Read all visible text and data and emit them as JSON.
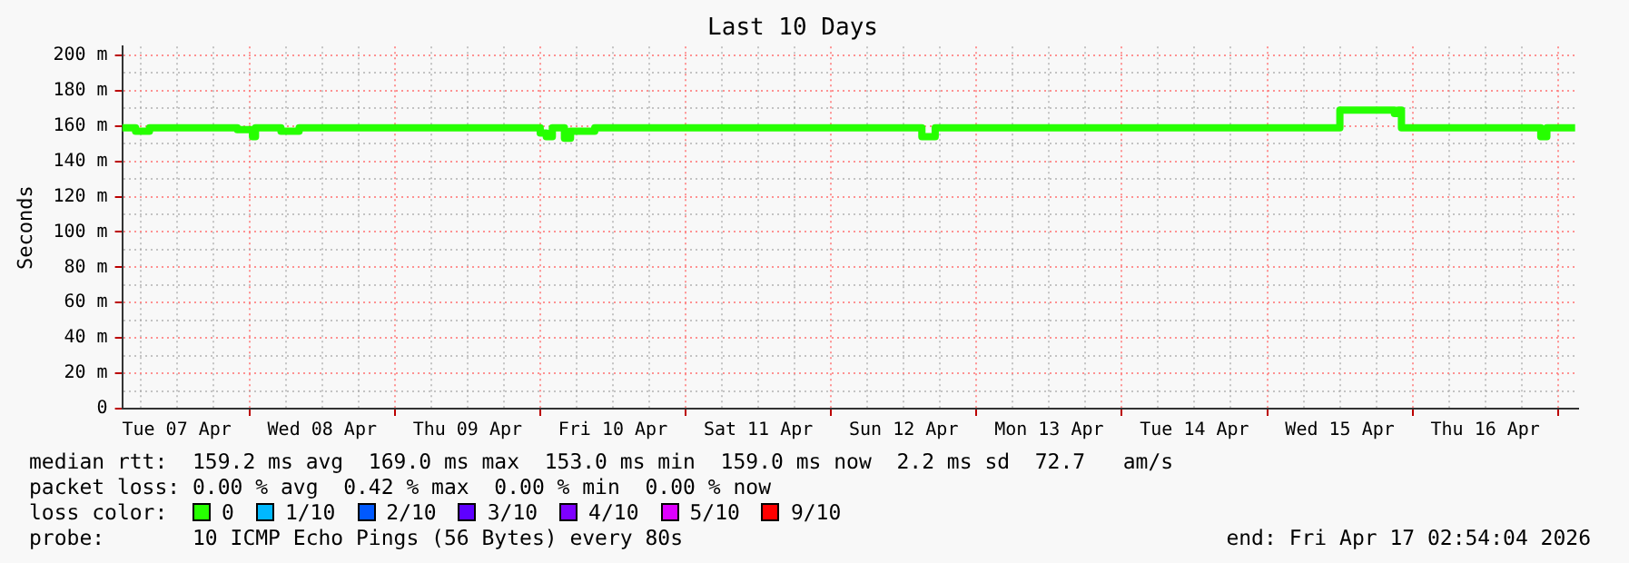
{
  "chart_data": {
    "type": "step",
    "title": "Last 10 Days",
    "ylabel": "Seconds",
    "legend_title": "loss color:",
    "legend": "bottom",
    "grid": true,
    "xlim": [
      "2026-04-07T03:00",
      "2026-04-17T03:20"
    ],
    "xticks": [
      {
        "value": "2026-04-07T06:00",
        "label": null
      },
      {
        "value": "2026-04-07T12:00",
        "label": "Tue 07 Apr"
      },
      {
        "value": "2026-04-07T18:00",
        "label": null
      },
      {
        "value": "2026-04-08T00:00",
        "label": null
      },
      {
        "value": "2026-04-08T06:00",
        "label": null
      },
      {
        "value": "2026-04-08T12:00",
        "label": "Wed 08 Apr"
      },
      {
        "value": "2026-04-08T18:00",
        "label": null
      },
      {
        "value": "2026-04-09T00:00",
        "label": null
      },
      {
        "value": "2026-04-09T06:00",
        "label": null
      },
      {
        "value": "2026-04-09T12:00",
        "label": "Thu 09 Apr"
      },
      {
        "value": "2026-04-09T18:00",
        "label": null
      },
      {
        "value": "2026-04-10T00:00",
        "label": null
      },
      {
        "value": "2026-04-10T06:00",
        "label": null
      },
      {
        "value": "2026-04-10T12:00",
        "label": "Fri 10 Apr"
      },
      {
        "value": "2026-04-10T18:00",
        "label": null
      },
      {
        "value": "2026-04-11T00:00",
        "label": null
      },
      {
        "value": "2026-04-11T06:00",
        "label": null
      },
      {
        "value": "2026-04-11T12:00",
        "label": "Sat 11 Apr"
      },
      {
        "value": "2026-04-11T18:00",
        "label": null
      },
      {
        "value": "2026-04-12T00:00",
        "label": null
      },
      {
        "value": "2026-04-12T06:00",
        "label": null
      },
      {
        "value": "2026-04-12T12:00",
        "label": "Sun 12 Apr"
      },
      {
        "value": "2026-04-12T18:00",
        "label": null
      },
      {
        "value": "2026-04-13T00:00",
        "label": null
      },
      {
        "value": "2026-04-13T06:00",
        "label": null
      },
      {
        "value": "2026-04-13T12:00",
        "label": "Mon 13 Apr"
      },
      {
        "value": "2026-04-13T18:00",
        "label": null
      },
      {
        "value": "2026-04-14T00:00",
        "label": null
      },
      {
        "value": "2026-04-14T06:00",
        "label": null
      },
      {
        "value": "2026-04-14T12:00",
        "label": "Tue 14 Apr"
      },
      {
        "value": "2026-04-14T18:00",
        "label": null
      },
      {
        "value": "2026-04-15T00:00",
        "label": null
      },
      {
        "value": "2026-04-15T06:00",
        "label": null
      },
      {
        "value": "2026-04-15T12:00",
        "label": "Wed 15 Apr"
      },
      {
        "value": "2026-04-15T18:00",
        "label": null
      },
      {
        "value": "2026-04-16T00:00",
        "label": null
      },
      {
        "value": "2026-04-16T06:00",
        "label": null
      },
      {
        "value": "2026-04-16T12:00",
        "label": "Thu 16 Apr"
      },
      {
        "value": "2026-04-16T18:00",
        "label": null
      },
      {
        "value": "2026-04-17T00:00",
        "label": null
      }
    ],
    "ylim": [
      0,
      205
    ],
    "yticks": [
      {
        "value": 0,
        "label": "0"
      },
      {
        "value": 10,
        "label": null
      },
      {
        "value": 20,
        "label": "20 m"
      },
      {
        "value": 30,
        "label": null
      },
      {
        "value": 40,
        "label": "40 m"
      },
      {
        "value": 50,
        "label": null
      },
      {
        "value": 60,
        "label": "60 m"
      },
      {
        "value": 70,
        "label": null
      },
      {
        "value": 80,
        "label": "80 m"
      },
      {
        "value": 90,
        "label": null
      },
      {
        "value": 100,
        "label": "100 m"
      },
      {
        "value": 110,
        "label": null
      },
      {
        "value": 120,
        "label": "120 m"
      },
      {
        "value": 130,
        "label": null
      },
      {
        "value": 140,
        "label": "140 m"
      },
      {
        "value": 150,
        "label": null
      },
      {
        "value": 160,
        "label": "160 m"
      },
      {
        "value": 170,
        "label": null
      },
      {
        "value": 180,
        "label": "180 m"
      },
      {
        "value": 190,
        "label": null
      },
      {
        "value": 200,
        "label": "200 m"
      }
    ],
    "series": [
      {
        "name": "0",
        "color": "#26ff00",
        "x": [
          "2026-04-07T03:00",
          "2026-04-07T05:12",
          "2026-04-07T07:30",
          "2026-04-07T22:00",
          "2026-04-08T00:30",
          "2026-04-08T01:00",
          "2026-04-08T05:12",
          "2026-04-08T08:12",
          "2026-04-10T00:00",
          "2026-04-10T01:00",
          "2026-04-10T02:00",
          "2026-04-10T04:00",
          "2026-04-10T05:00",
          "2026-04-10T09:00",
          "2026-04-12T15:00",
          "2026-04-12T17:12",
          "2026-04-15T12:00",
          "2026-04-15T21:00",
          "2026-04-15T21:40",
          "2026-04-15T22:10",
          "2026-04-16T21:10",
          "2026-04-16T22:10",
          "2026-04-17T02:50"
        ],
        "values": [
          159,
          157,
          159,
          158,
          154,
          159,
          157,
          159,
          156,
          154,
          159,
          153,
          157,
          159,
          154,
          159,
          169,
          167,
          169,
          159,
          154,
          159,
          159
        ]
      },
      {
        "name": "1/10",
        "color": "#00b8ff"
      },
      {
        "name": "2/10",
        "color": "#0059ff"
      },
      {
        "name": "3/10",
        "color": "#5e00ff"
      },
      {
        "name": "4/10",
        "color": "#7e00ff"
      },
      {
        "name": "5/10",
        "color": "#dd00ff"
      },
      {
        "name": "9/10",
        "color": "#ff0000"
      }
    ],
    "annotations": [
      "median rtt:  159.2 ms avg  169.0 ms max  153.0 ms min  159.0 ms now  2.2 ms sd  72.7   am/s",
      "packet loss: 0.00 % avg  0.42 % max  0.00 % min  0.00 % now",
      "probe:       10 ICMP Echo Pings (56 Bytes) every 80s",
      "end: Fri Apr 17 02:54:04 2026"
    ]
  }
}
